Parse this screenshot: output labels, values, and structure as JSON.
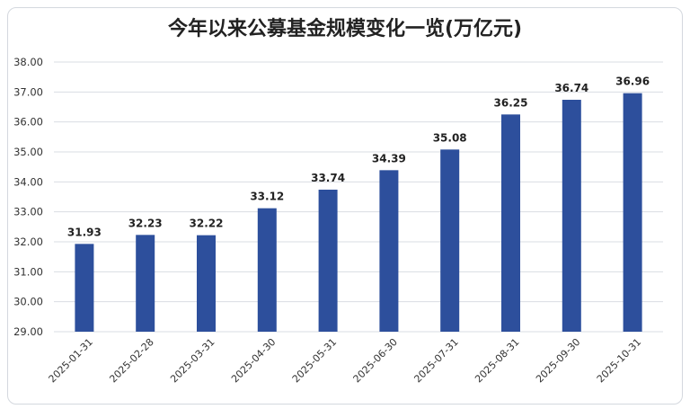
{
  "chart_data": {
    "type": "bar",
    "title": "今年以来公募基金规模变化一览(万亿元)",
    "categories": [
      "2025-01-31",
      "2025-02-28",
      "2025-03-31",
      "2025-04-30",
      "2025-05-31",
      "2025-06-30",
      "2025-07-31",
      "2025-08-31",
      "2025-09-30",
      "2025-10-31"
    ],
    "values": [
      31.93,
      32.23,
      32.22,
      33.12,
      33.74,
      34.39,
      35.08,
      36.25,
      36.74,
      36.96
    ],
    "data_labels": [
      "31.93",
      "32.23",
      "32.22",
      "33.12",
      "33.74",
      "34.39",
      "35.08",
      "36.25",
      "36.74",
      "36.96"
    ],
    "yticks": [
      "29.00",
      "30.00",
      "31.00",
      "32.00",
      "33.00",
      "34.00",
      "35.00",
      "36.00",
      "37.00",
      "38.00"
    ],
    "ylim": [
      29,
      38
    ],
    "xlabel": "",
    "ylabel": "",
    "grid": true,
    "bar_color": "#2d4f9c",
    "grid_color": "#d9dde3"
  }
}
